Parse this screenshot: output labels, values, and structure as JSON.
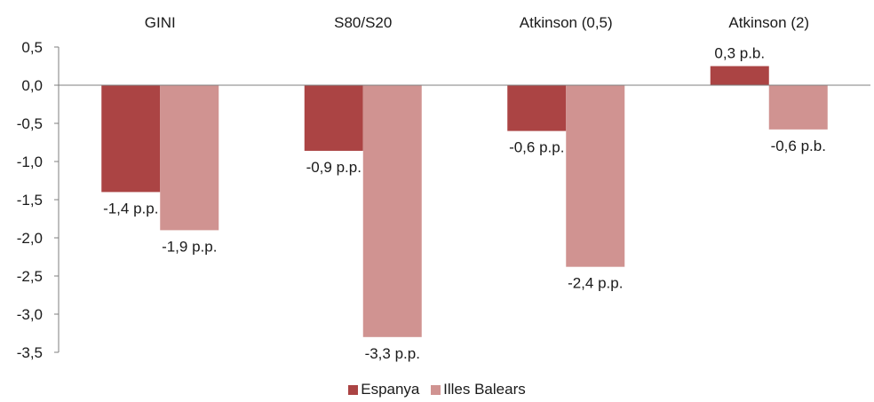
{
  "chart_data": {
    "type": "bar",
    "categories": [
      "GINI",
      "S80/S20",
      "Atkinson (0,5)",
      "Atkinson (2)"
    ],
    "series": [
      {
        "name": "Espanya",
        "color": "#ab4444",
        "values": [
          -1.4,
          -0.86,
          -0.6,
          0.25
        ],
        "labels": [
          "-1,4 p.p.",
          "-0,9 p.p.",
          "-0,6  p.p.",
          "0,3 p.b."
        ]
      },
      {
        "name": "Illes Balears",
        "color": "#d09391",
        "values": [
          -1.9,
          -3.3,
          -2.38,
          -0.58
        ],
        "labels": [
          "-1,9 p.p.",
          "-3,3  p.p.",
          "-2,4  p.p.",
          "-0,6 p.b."
        ]
      }
    ],
    "yticks": [
      "0,5",
      "0,0",
      "-0,5",
      "-1,0",
      "-1,5",
      "-2,0",
      "-2,5",
      "-3,0",
      "-3,5"
    ],
    "ylim": [
      -3.5,
      0.5
    ],
    "grid": false,
    "legend_position": "bottom"
  }
}
